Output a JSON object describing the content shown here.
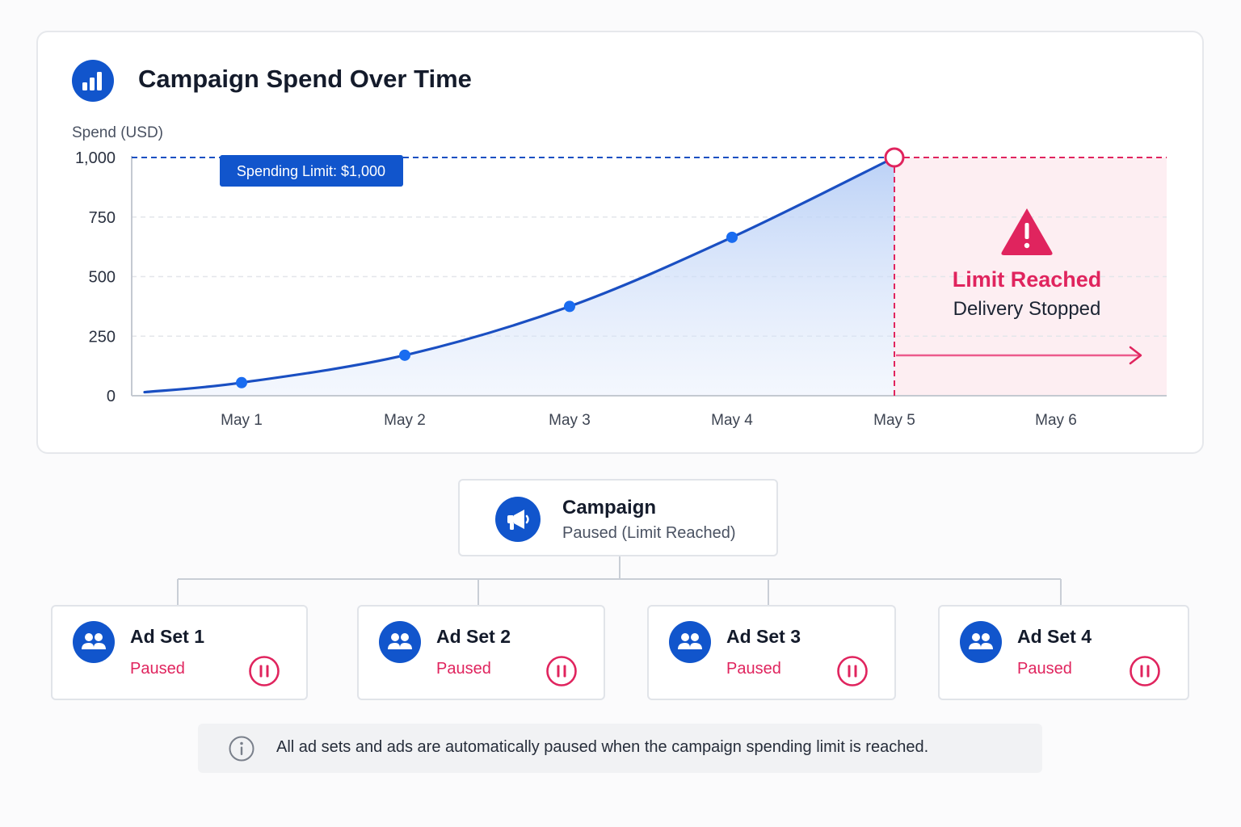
{
  "chart_card": {
    "title": "Campaign Spend Over Time",
    "title_icon": "bar-chart-icon"
  },
  "chart_data": {
    "type": "area",
    "title": "Campaign Spend Over Time",
    "ylabel": "Spend (USD)",
    "xlabel": "",
    "categories": [
      "May 1",
      "May 2",
      "May 3",
      "May 4",
      "May 5",
      "May 6"
    ],
    "series": [
      {
        "x": [
          "start",
          "May 1",
          "May 2",
          "May 3",
          "May 4",
          "May 5"
        ],
        "values": [
          15,
          55,
          170,
          375,
          665,
          1000
        ],
        "markers": [
          "May 1",
          "May 2",
          "May 3",
          "May 4"
        ]
      }
    ],
    "yticks": [
      "0",
      "250",
      "500",
      "750",
      "1,000"
    ],
    "ylim": [
      0,
      1000
    ],
    "grid": "horizontal dashed",
    "limit_line": {
      "value": 1000,
      "label": "Spending Limit: $1,000"
    },
    "limit_point": "May 5",
    "annotation": {
      "title": "Limit Reached",
      "subtitle": "Delivery Stopped"
    }
  },
  "campaign": {
    "icon": "megaphone-icon",
    "title": "Campaign",
    "status": "Paused (Limit Reached)"
  },
  "ad_sets": [
    {
      "name": "Ad Set 1",
      "status": "Paused",
      "icon": "users-icon",
      "action_icon": "pause-icon"
    },
    {
      "name": "Ad Set 2",
      "status": "Paused",
      "icon": "users-icon",
      "action_icon": "pause-icon"
    },
    {
      "name": "Ad Set 3",
      "status": "Paused",
      "icon": "users-icon",
      "action_icon": "pause-icon"
    },
    {
      "name": "Ad Set 4",
      "status": "Paused",
      "icon": "users-icon",
      "action_icon": "pause-icon"
    }
  ],
  "info": {
    "icon": "info-icon",
    "text": "All ad sets and ads are automatically paused when the campaign spending limit is reached."
  },
  "colors": {
    "brand_blue": "#1155cc",
    "line_blue": "#1a4fc2",
    "marker_blue": "#1a6cf0",
    "alert_pink": "#e0245e",
    "alert_zone": "#fdeef2"
  }
}
